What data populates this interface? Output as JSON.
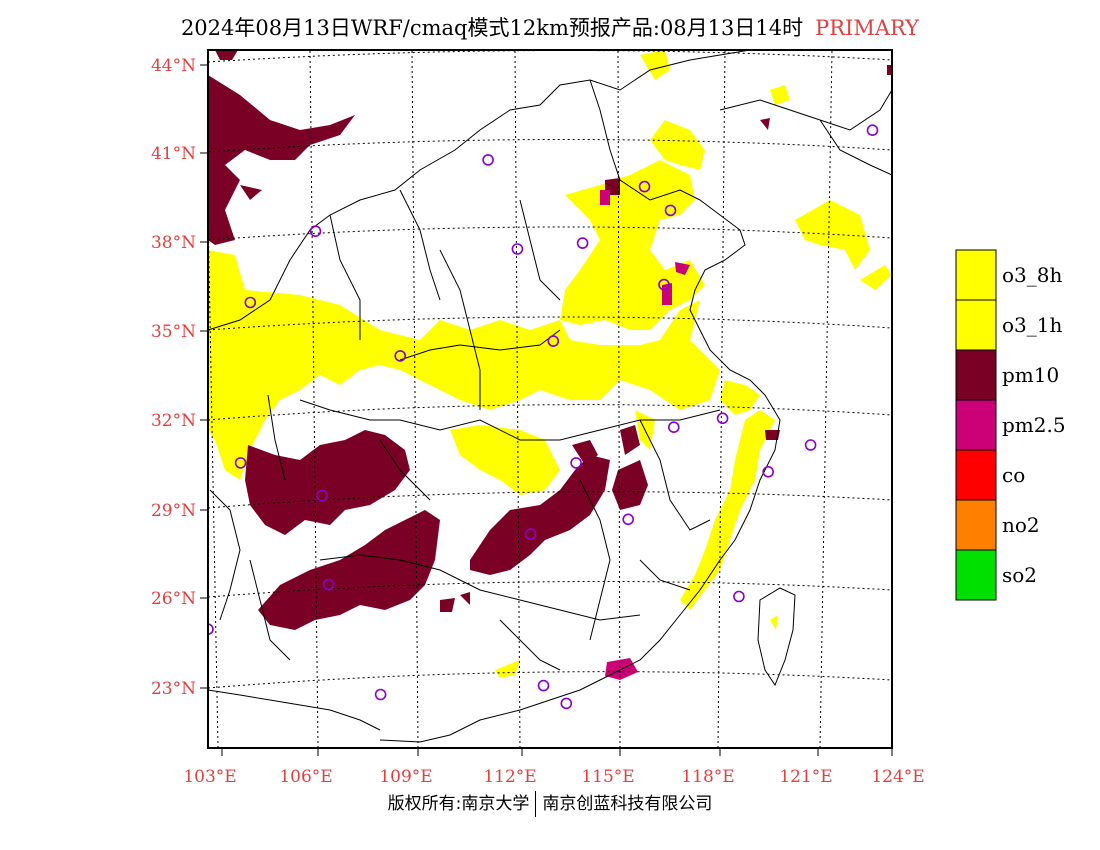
{
  "title": {
    "text": "2024年08月13日WRF/cmaq模式12km预报产品:08月13日14时",
    "tag": "PRIMARY"
  },
  "map": {
    "lat_labels": [
      "44°N",
      "41°N",
      "38°N",
      "35°N",
      "32°N",
      "29°N",
      "26°N",
      "23°N"
    ],
    "lon_labels": [
      "103°E",
      "106°E",
      "109°E",
      "112°E",
      "115°E",
      "118°E",
      "121°E",
      "124°E"
    ],
    "lon_range": [
      103,
      124
    ],
    "lat_range": [
      21,
      44.5
    ],
    "cities": [
      {
        "lon": 103.0,
        "lat": 25.0
      },
      {
        "lon": 104.3,
        "lat": 36.0
      },
      {
        "lon": 106.3,
        "lat": 38.4
      },
      {
        "lon": 108.9,
        "lat": 34.2
      },
      {
        "lon": 104.0,
        "lat": 30.6
      },
      {
        "lon": 106.5,
        "lat": 29.5
      },
      {
        "lon": 106.7,
        "lat": 26.5
      },
      {
        "lon": 108.3,
        "lat": 22.8
      },
      {
        "lon": 111.6,
        "lat": 40.8
      },
      {
        "lon": 112.5,
        "lat": 37.8
      },
      {
        "lon": 113.6,
        "lat": 34.7
      },
      {
        "lon": 114.5,
        "lat": 38.0
      },
      {
        "lon": 116.4,
        "lat": 39.9
      },
      {
        "lon": 117.2,
        "lat": 39.1
      },
      {
        "lon": 117.0,
        "lat": 36.6
      },
      {
        "lon": 114.3,
        "lat": 30.6
      },
      {
        "lon": 112.9,
        "lat": 28.2
      },
      {
        "lon": 115.9,
        "lat": 28.7
      },
      {
        "lon": 117.3,
        "lat": 31.8
      },
      {
        "lon": 118.8,
        "lat": 32.1
      },
      {
        "lon": 120.2,
        "lat": 30.3
      },
      {
        "lon": 119.3,
        "lat": 26.1
      },
      {
        "lon": 113.3,
        "lat": 23.1
      },
      {
        "lon": 123.4,
        "lat": 41.8
      },
      {
        "lon": 121.5,
        "lat": 31.2
      },
      {
        "lon": 114.0,
        "lat": 22.5
      }
    ]
  },
  "legend": {
    "items": [
      {
        "label": "o3_8h",
        "color": "#ffff00"
      },
      {
        "label": "o3_1h",
        "color": "#ffff00"
      },
      {
        "label": "pm10",
        "color": "#7a0025"
      },
      {
        "label": "pm2.5",
        "color": "#cc0077"
      },
      {
        "label": "co",
        "color": "#ff0000"
      },
      {
        "label": "no2",
        "color": "#ff8000"
      },
      {
        "label": "so2",
        "color": "#00e000"
      }
    ]
  },
  "colors": {
    "o3": "#ffff00",
    "pm10": "#7a0025",
    "pm25": "#cc0077",
    "city_marker": "#8800cc",
    "label": "#e04040"
  },
  "copyright": {
    "left": "版权所有:南京大学",
    "right": "南京创蓝科技有限公司"
  }
}
